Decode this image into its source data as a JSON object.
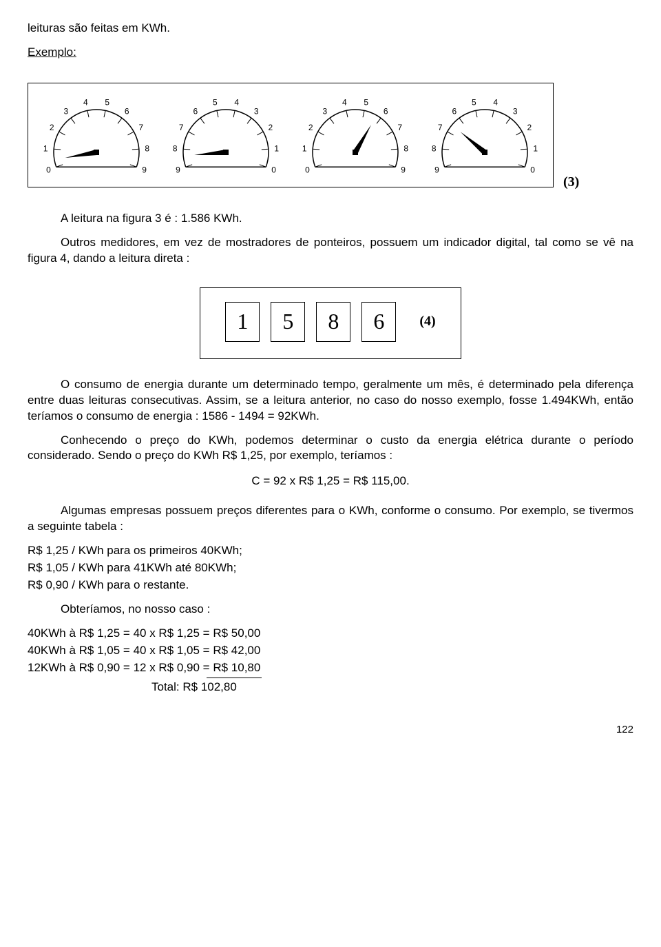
{
  "intro_line": "leituras são feitas em KWh.",
  "exemplo_label": "Exemplo:",
  "fig3_label": "(3)",
  "gauges_image_hint": "Quatro mostradores analógicos de 0 a 9",
  "gauges": [
    {
      "ccw": false,
      "pointer_angle": -170
    },
    {
      "ccw": true,
      "pointer_angle": 185
    },
    {
      "ccw": false,
      "pointer_angle": 60
    },
    {
      "ccw": true,
      "pointer_angle": 140
    }
  ],
  "reading_line": "A leitura na figura 3 é : 1.586 KWh.",
  "para_digital": "Outros medidores, em vez de mostradores de ponteiros, possuem um indicador digital, tal como se vê na figura 4, dando a leitura direta :",
  "digital_digits": [
    "1",
    "5",
    "8",
    "6"
  ],
  "fig4_label": "(4)",
  "para_consumo": "O consumo de energia durante um determinado tempo, geralmente um mês, é determinado pela diferença entre duas leituras consecutivas. Assim, se a leitura anterior, no caso do nosso exemplo, fosse 1.494KWh, então teríamos o consumo de energia : 1586 - 1494 = 92KWh.",
  "para_preco": "Conhecendo o preço do KWh, podemos determinar o custo da energia elétrica durante o período considerado. Sendo o preço do KWh R$ 1,25, por exemplo, teríamos :",
  "equation": "C = 92 x R$ 1,25 = R$ 115,00.",
  "para_tabela": "Algumas empresas possuem preços diferentes para o KWh, conforme o consumo. Por exemplo, se tivermos a seguinte tabela :",
  "tiers": [
    "R$ 1,25 / KWh para os primeiros 40KWh;",
    "R$ 1,05 / KWh para 41KWh até 80KWh;",
    "R$ 0,90 / KWh para o restante."
  ],
  "obter_line": "Obteríamos, no nosso caso :",
  "calc_lines": [
    "40KWh à R$ 1,25 = 40 x R$ 1,25 = R$ 50,00",
    "40KWh à R$ 1,05 = 40 x R$ 1,05 = R$ 42,00",
    "12KWh à R$ 0,90 = 12 x R$ 0,90 = R$ 10,80"
  ],
  "total_line": "Total: R$ 102,80",
  "page_number": "122"
}
